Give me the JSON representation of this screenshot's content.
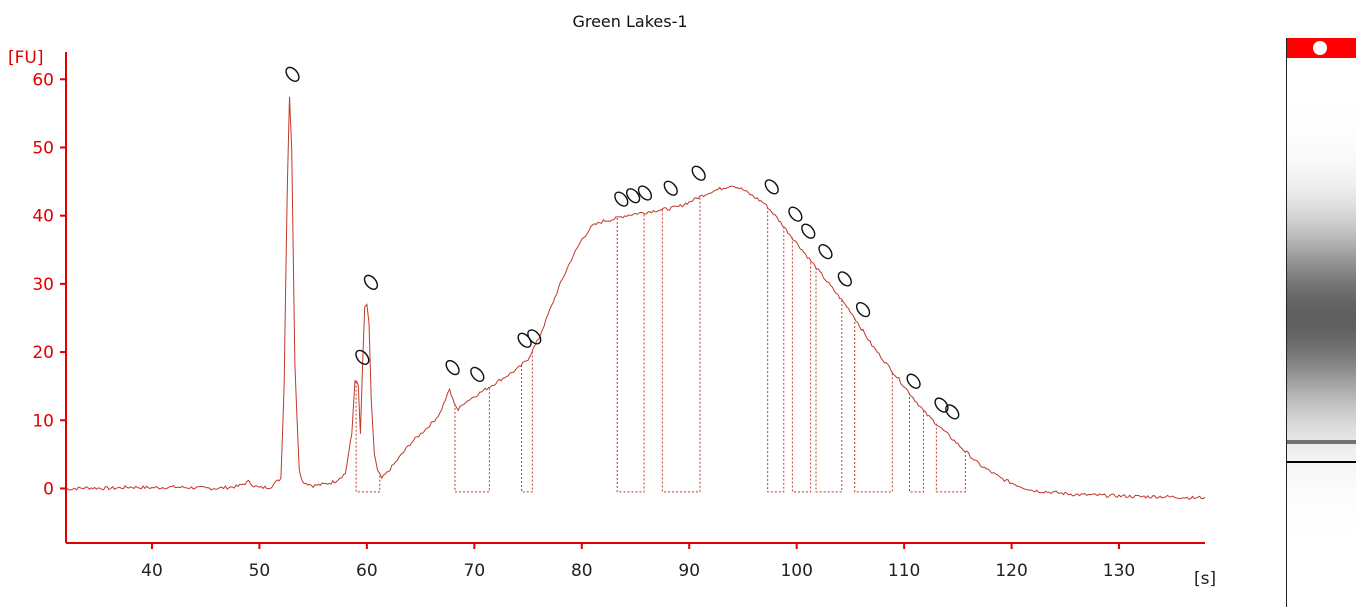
{
  "chart_data": {
    "type": "line",
    "title": "Green Lakes-1",
    "ylabel": "[FU]",
    "xlabel": "[s]",
    "xlim": [
      32,
      138
    ],
    "ylim": [
      -8,
      64
    ],
    "xticks": [
      40,
      50,
      60,
      70,
      80,
      90,
      100,
      110,
      120,
      130
    ],
    "yticks": [
      0,
      10,
      20,
      30,
      40,
      50,
      60
    ],
    "grid": false,
    "colors": {
      "axis": "#e00000",
      "trace": "#c0392b",
      "ticklabel": "#e00000"
    },
    "series": [
      {
        "values_x": [
          32,
          34,
          36,
          38,
          40,
          42,
          44,
          46,
          48,
          49,
          49.5,
          50,
          51,
          52,
          52.3,
          52.6,
          52.8,
          53,
          53.3,
          53.7,
          54,
          55,
          56,
          57,
          58,
          58.6,
          58.9,
          59.2,
          59.4,
          59.6,
          59.8,
          60,
          60.2,
          60.4,
          60.7,
          61,
          61.4,
          62,
          63,
          64,
          65,
          66,
          66.8,
          67.3,
          67.7,
          68,
          68.5,
          69,
          70,
          71,
          72,
          73,
          74,
          75,
          76,
          77,
          78,
          79,
          80,
          81,
          82,
          83,
          84,
          85,
          86,
          87,
          88,
          89,
          90,
          91,
          92,
          93,
          94,
          95,
          96,
          97,
          98,
          99,
          100,
          101,
          102,
          103,
          104,
          105,
          106,
          107,
          108,
          109,
          110,
          111,
          112,
          113,
          114,
          115,
          116,
          117,
          118,
          119,
          120,
          121,
          122,
          124,
          126,
          128,
          130,
          132,
          134,
          136,
          137,
          138
        ],
        "values_y": [
          -0.1,
          0.1,
          0,
          0.2,
          0.1,
          0.2,
          0.1,
          0,
          0.3,
          1,
          0.4,
          0.1,
          0.2,
          1.5,
          15,
          45,
          57.5,
          50,
          18,
          3,
          1,
          0.4,
          0.6,
          1,
          2.2,
          8,
          16,
          15,
          8,
          18,
          26.5,
          27,
          24,
          13,
          5,
          2.5,
          1.5,
          2.5,
          4.5,
          6.5,
          8,
          9.5,
          11,
          13,
          14.5,
          13,
          11.5,
          12.5,
          13.5,
          14.5,
          15.5,
          16.5,
          17.5,
          19,
          22,
          26,
          30,
          33.5,
          36.5,
          38.5,
          39.2,
          39.5,
          40,
          40.3,
          40.5,
          40.8,
          41,
          41.3,
          42,
          42.8,
          43.5,
          44,
          44.5,
          43.8,
          42.8,
          41.8,
          40,
          38,
          36,
          34,
          32,
          30,
          28,
          26,
          23.5,
          21,
          19,
          17,
          15,
          13,
          11,
          9.5,
          8,
          6.5,
          5,
          3.5,
          2.5,
          1.5,
          0.8,
          0.2,
          -0.3,
          -0.6,
          -0.9,
          -1,
          -1.1,
          -1.2,
          -1.2,
          -1.3,
          -1.4,
          -1.3
        ]
      }
    ],
    "peaks": [
      {
        "x": 52.8,
        "y": 57.5
      },
      {
        "x": 59.3,
        "y": 16
      },
      {
        "x": 60.1,
        "y": 27
      },
      {
        "x": 67.7,
        "y": 14.5
      },
      {
        "x": 70,
        "y": 13.5
      },
      {
        "x": 74.4,
        "y": 18.5
      },
      {
        "x": 75.3,
        "y": 19
      },
      {
        "x": 83.4,
        "y": 39.2
      },
      {
        "x": 84.5,
        "y": 39.7
      },
      {
        "x": 85.6,
        "y": 40.1
      },
      {
        "x": 88,
        "y": 40.8
      },
      {
        "x": 90.6,
        "y": 43
      },
      {
        "x": 97.4,
        "y": 41
      },
      {
        "x": 99.6,
        "y": 37
      },
      {
        "x": 100.8,
        "y": 34.5
      },
      {
        "x": 102.4,
        "y": 31.5
      },
      {
        "x": 104.2,
        "y": 27.5
      },
      {
        "x": 105.9,
        "y": 23
      },
      {
        "x": 110.6,
        "y": 12.5
      },
      {
        "x": 113.2,
        "y": 9
      },
      {
        "x": 114.2,
        "y": 8
      }
    ],
    "integration_windows": [
      [
        59.0,
        61.2
      ],
      [
        68.2,
        71.4
      ],
      [
        74.4,
        75.4
      ],
      [
        83.3,
        85.8
      ],
      [
        87.5,
        91.0
      ],
      [
        97.3,
        98.8
      ],
      [
        99.6,
        101.3
      ],
      [
        101.8,
        104.2
      ],
      [
        105.4,
        108.9
      ],
      [
        110.5,
        111.8
      ],
      [
        113.0,
        115.7
      ]
    ],
    "gel_lane": {
      "bands": [
        {
          "pos": 0.89,
          "intensity": 1.0
        },
        {
          "pos": 0.85,
          "intensity": 0.55
        },
        {
          "pos": 0.5,
          "intensity": 0.8
        }
      ]
    }
  }
}
